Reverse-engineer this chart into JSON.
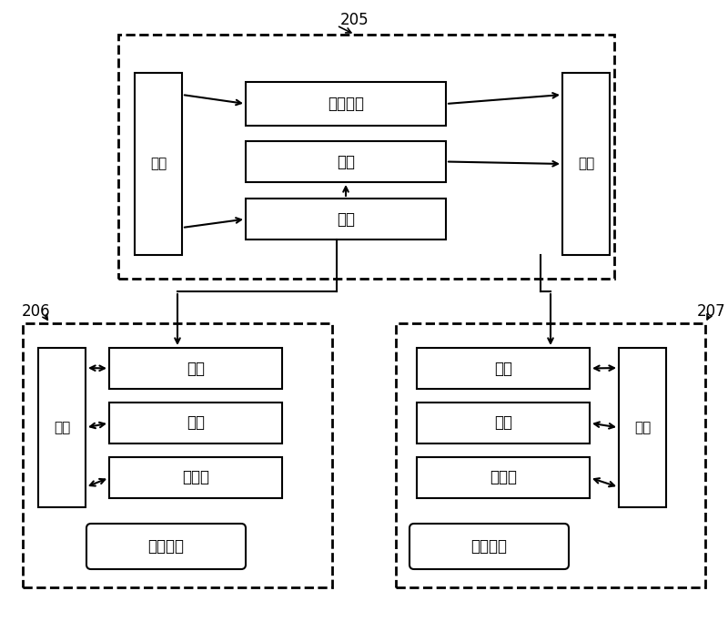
{
  "title": "",
  "bg_color": "#ffffff",
  "label_205": "205",
  "label_206": "206",
  "label_207": "207",
  "box_205_label": "复写处理",
  "box_205_interface1": "接口",
  "box_205_interface2": "接口",
  "box_205_scan": "扫描",
  "box_205_print": "打印",
  "box_206_interface": "接口",
  "box_206_disk": "硬盘",
  "box_206_memory": "存储器",
  "box_206_print": "打印",
  "box_206_bottom": "信息识别",
  "box_207_interface": "接口",
  "box_207_disk": "硬盘",
  "box_207_memory": "存储器",
  "box_207_print": "打印",
  "box_207_bottom": "信息埋入"
}
